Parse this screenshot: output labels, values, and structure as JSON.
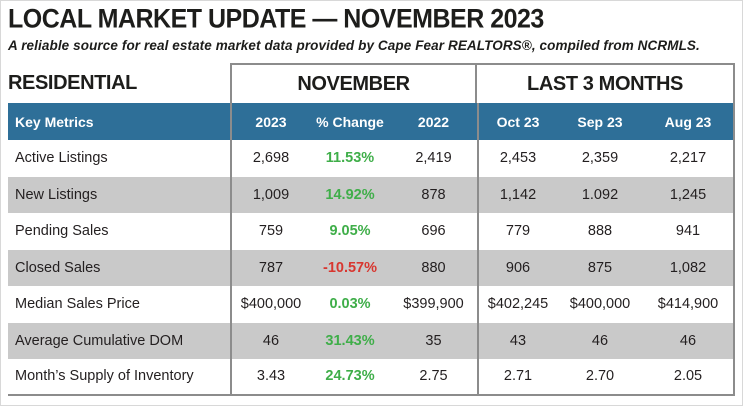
{
  "header": {
    "title": "LOCAL MARKET UPDATE — NOVEMBER 2023",
    "subtitle": "A reliable source for real estate market data provided by Cape Fear REALTORS®, compiled from NCRMLS."
  },
  "table": {
    "section_label": "RESIDENTIAL",
    "sections": {
      "november": "NOVEMBER",
      "last3": "LAST 3 MONTHS"
    },
    "columns": [
      "Key Metrics",
      "2023",
      "% Change",
      "2022",
      "Oct 23",
      "Sep 23",
      "Aug 23"
    ],
    "rows": [
      {
        "metric": "Active Listings",
        "y2023": "2,698",
        "change": "11.53%",
        "y2022": "2,419",
        "oct": "2,453",
        "sep": "2,359",
        "aug": "2,217"
      },
      {
        "metric": "New Listings",
        "y2023": "1,009",
        "change": "14.92%",
        "y2022": "878",
        "oct": "1,142",
        "sep": "1.092",
        "aug": "1,245"
      },
      {
        "metric": "Pending Sales",
        "y2023": "759",
        "change": "9.05%",
        "y2022": "696",
        "oct": "779",
        "sep": "888",
        "aug": "941"
      },
      {
        "metric": "Closed Sales",
        "y2023": "787",
        "change": "-10.57%",
        "y2022": "880",
        "oct": "906",
        "sep": "875",
        "aug": "1,082"
      },
      {
        "metric": "Median Sales Price",
        "y2023": "$400,000",
        "change": "0.03%",
        "y2022": "$399,900",
        "oct": "$402,245",
        "sep": "$400,000",
        "aug": "$414,900"
      },
      {
        "metric": "Average Cumulative DOM",
        "y2023": "46",
        "change": "31.43%",
        "y2022": "35",
        "oct": "43",
        "sep": "46",
        "aug": "46"
      },
      {
        "metric": "Month’s Supply of Inventory",
        "y2023": "3.43",
        "change": "24.73%",
        "y2022": "2.75",
        "oct": "2.71",
        "sep": "2.70",
        "aug": "2.05"
      }
    ],
    "colors": {
      "header_blue": "#2E6F98",
      "row_gray": "#C9C9C9",
      "positive": "#3FAE49",
      "negative": "#D8362F",
      "border": "#8C8C8C"
    }
  }
}
